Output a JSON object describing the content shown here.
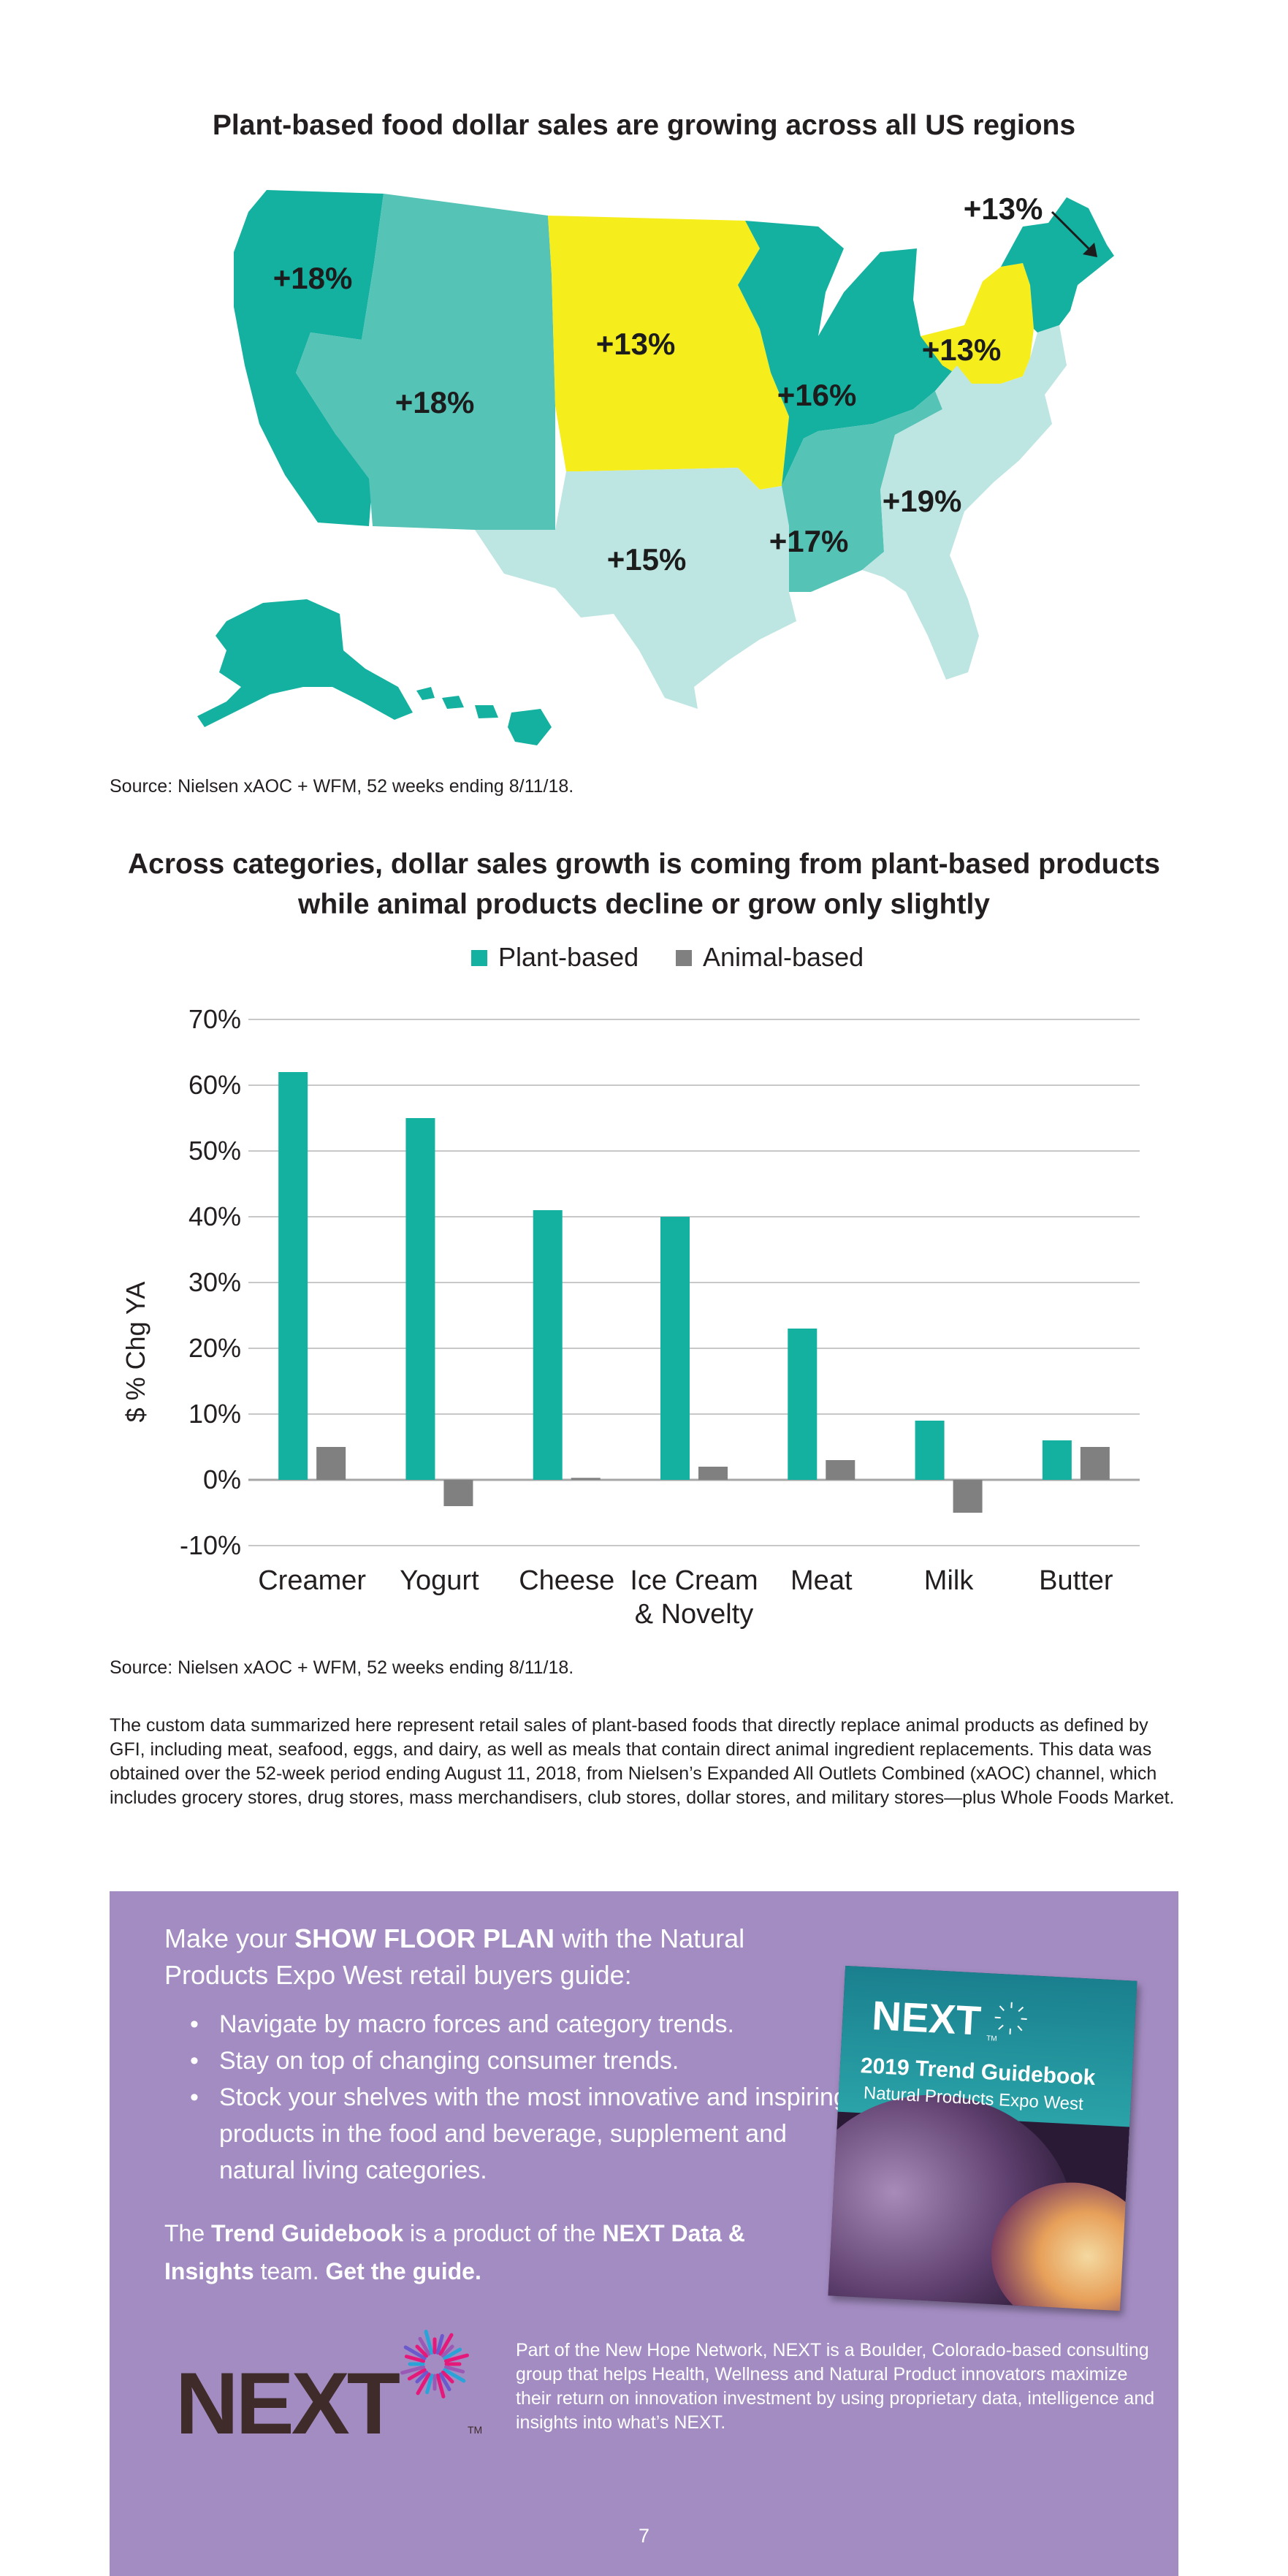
{
  "map": {
    "title": "Plant-based food dollar sales are growing across all US regions",
    "regions": [
      {
        "id": "pacific",
        "growth": "+18%",
        "color": "#14b1a0"
      },
      {
        "id": "mountain",
        "growth": "+18%",
        "color": "#55c3b6"
      },
      {
        "id": "west-north-central",
        "growth": "+13%",
        "color": "#f6ee1c"
      },
      {
        "id": "east-north-central",
        "growth": "+16%",
        "color": "#14b1a0"
      },
      {
        "id": "middle-atlantic",
        "growth": "+13%",
        "color": "#f6ee1c"
      },
      {
        "id": "new-england",
        "growth": "+13%",
        "color": "#14b1a0"
      },
      {
        "id": "west-south-central",
        "growth": "+15%",
        "color": "#bde5e1"
      },
      {
        "id": "east-south-central",
        "growth": "+17%",
        "color": "#55c3b6"
      },
      {
        "id": "south-atlantic",
        "growth": "+19%",
        "color": "#bde5e1"
      }
    ],
    "source": "Source: Nielsen xAOC + WFM, 52 weeks ending 8/11/18."
  },
  "chart_data": {
    "type": "bar",
    "title": "Across categories, dollar sales growth is coming from plant-based products while animal products decline or grow only slightly",
    "title_lines": [
      "Across categories, dollar sales growth is coming from plant-based products",
      "while animal products decline or grow only slightly"
    ],
    "ylabel": "$ % Chg YA",
    "xlabel": "",
    "ylim": [
      -10,
      70
    ],
    "yticks": [
      70,
      60,
      50,
      40,
      30,
      20,
      10,
      0,
      -10
    ],
    "ytick_labels": [
      "70%",
      "60%",
      "50%",
      "40%",
      "30%",
      "20%",
      "10%",
      "0%",
      "-10%"
    ],
    "categories": [
      "Creamer",
      "Yogurt",
      "Cheese",
      "Ice Cream & Novelty",
      "Meat",
      "Milk",
      "Butter"
    ],
    "category_lines": [
      [
        "Creamer"
      ],
      [
        "Yogurt"
      ],
      [
        "Cheese"
      ],
      [
        "Ice Cream",
        "& Novelty"
      ],
      [
        "Meat"
      ],
      [
        "Milk"
      ],
      [
        "Butter"
      ]
    ],
    "series": [
      {
        "name": "Plant-based",
        "color": "#14b1a0",
        "values": [
          62,
          55,
          41,
          40,
          23,
          9,
          6
        ]
      },
      {
        "name": "Animal-based",
        "color": "#808080",
        "values": [
          5,
          -4,
          0.3,
          2,
          3,
          -5,
          5
        ]
      }
    ],
    "grid": true,
    "legend": "top-center",
    "source": "Source: Nielsen xAOC + WFM, 52 weeks ending 8/11/18."
  },
  "footnote": "The custom data summarized here represent retail sales of plant-based foods that directly replace animal products as defined by GFI, including meat, seafood, eggs, and dairy, as well as meals that contain direct animal ingredient replacements. This data was obtained over the 52-week period ending August 11, 2018, from Nielsen’s Expanded All Outlets Combined (xAOC) channel, which includes grocery stores, drug stores, mass merchandisers, club stores, dollar stores, and military stores—plus Whole Foods Market.",
  "promo": {
    "heading_pre": "Make your ",
    "heading_bold": "SHOW FLOOR PLAN",
    "heading_post": " with the Natural Products Expo West retail buyers guide:",
    "bullets": [
      "Navigate by macro forces and category trends.",
      "Stay on top of changing consumer trends.",
      "Stock your shelves with the most innovative and inspiring products in the food and beverage, supplement and natural living categories."
    ],
    "credit_pre": "The ",
    "credit_bold1": "Trend Guidebook",
    "credit_mid": "  is a product of the ",
    "credit_bold2": "NEXT Data & Insights",
    "credit_post": " team. ",
    "credit_link": "Get the guide.",
    "book": {
      "brand": "NEXT",
      "tm": "TM",
      "title": "2019 Trend Guidebook",
      "subtitle": "Natural Products Expo West"
    },
    "about": "Part of the New Hope Network, NEXT is a Boulder, Colorado-based consulting group that helps Health, Wellness and Natural Product innovators maximize their return on innovation investment by using proprietary data, intelligence and insights into what’s NEXT."
  },
  "logo": {
    "text": "NEXT",
    "tm": "TM",
    "color": "#3f2b29"
  },
  "page_number": "7"
}
